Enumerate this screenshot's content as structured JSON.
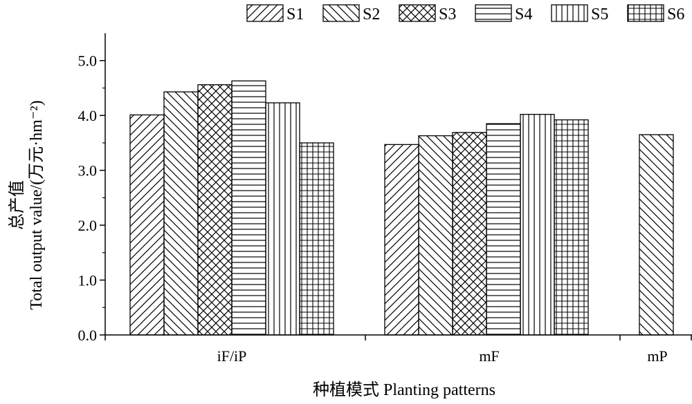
{
  "chart_data": {
    "type": "bar",
    "categories": [
      "iF/iP",
      "mF",
      "mP"
    ],
    "series": [
      {
        "name": "S1",
        "values": [
          4.01,
          3.47,
          null
        ]
      },
      {
        "name": "S2",
        "values": [
          4.43,
          3.63,
          3.65
        ]
      },
      {
        "name": "S3",
        "values": [
          4.56,
          3.69,
          null
        ]
      },
      {
        "name": "S4",
        "values": [
          4.63,
          3.85,
          null
        ]
      },
      {
        "name": "S5",
        "values": [
          4.23,
          4.02,
          null
        ]
      },
      {
        "name": "S6",
        "values": [
          3.5,
          3.92,
          null
        ]
      }
    ],
    "xlabel": "种植模式 Planting patterns",
    "ylabel_line1": "总产值",
    "ylabel_line2": "Total output value/(万元·hm⁻²)",
    "ylim": [
      0,
      5.5
    ],
    "yticks": [
      "0.0",
      "1.0",
      "2.0",
      "3.0",
      "4.0",
      "5.0"
    ],
    "legend_position": "top-right",
    "grid": false
  },
  "colors": {
    "ink": "#000000",
    "background": "#ffffff"
  }
}
